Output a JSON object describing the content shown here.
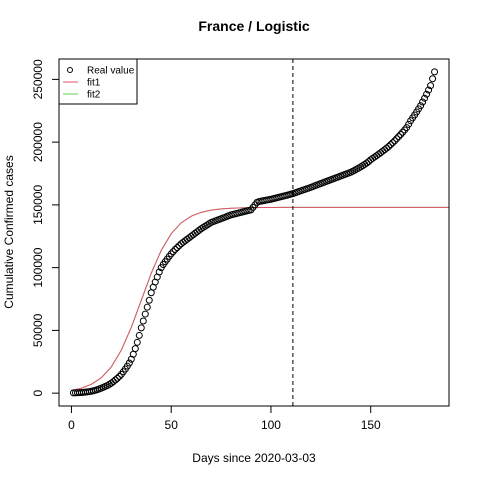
{
  "chart_data": {
    "type": "scatter",
    "title": "France / Logistic",
    "x_label": "Days since 2020-03-03",
    "y_label": "Cumulative Confirmed cases",
    "xlim": [
      -6.24,
      189.24
    ],
    "ylim": [
      -10240,
      266240
    ],
    "xticks": [
      0,
      50,
      100,
      150
    ],
    "yticks": [
      0,
      50000,
      100000,
      150000,
      200000,
      250000
    ],
    "vline": 111,
    "legend": "top-left",
    "series": [
      {
        "name": "Real value",
        "color": "#000000",
        "kind": "points",
        "x": [
          1,
          2,
          3,
          4,
          5,
          6,
          7,
          8,
          9,
          10,
          11,
          12,
          13,
          14,
          15,
          16,
          17,
          18,
          19,
          20,
          21,
          22,
          23,
          24,
          25,
          26,
          27,
          28,
          29,
          30,
          31,
          32,
          33,
          34,
          35,
          36,
          37,
          38,
          39,
          40,
          41,
          42,
          43,
          44,
          45,
          46,
          47,
          48,
          49,
          50,
          51,
          52,
          53,
          54,
          55,
          56,
          57,
          58,
          59,
          60,
          61,
          62,
          63,
          64,
          65,
          66,
          67,
          68,
          69,
          70,
          71,
          72,
          73,
          74,
          75,
          76,
          77,
          78,
          79,
          80,
          81,
          82,
          83,
          84,
          85,
          86,
          87,
          88,
          89,
          90,
          91,
          92,
          93,
          94,
          95,
          96,
          97,
          98,
          99,
          100,
          101,
          102,
          103,
          104,
          105,
          106,
          107,
          108,
          109,
          110,
          111,
          112,
          113,
          114,
          115,
          116,
          117,
          118,
          119,
          120,
          121,
          122,
          123,
          124,
          125,
          126,
          127,
          128,
          129,
          130,
          131,
          132,
          133,
          134,
          135,
          136,
          137,
          138,
          139,
          140,
          141,
          142,
          143,
          144,
          145,
          146,
          147,
          148,
          149,
          150,
          151,
          152,
          153,
          154,
          155,
          156,
          157,
          158,
          159,
          160,
          161,
          162,
          163,
          164,
          165,
          166,
          167,
          168,
          169,
          170,
          171,
          172,
          173,
          174,
          175,
          176,
          177,
          178,
          179,
          180,
          181,
          182
        ],
        "values": [
          200,
          250,
          300,
          400,
          500,
          600,
          800,
          1000,
          1200,
          1500,
          1900,
          2300,
          2800,
          3400,
          4000,
          4700,
          5400,
          6100,
          7000,
          8000,
          9200,
          10500,
          11800,
          13300,
          15000,
          17000,
          19200,
          21500,
          24000,
          27000,
          31000,
          35500,
          40500,
          46000,
          52000,
          57500,
          63000,
          68500,
          74000,
          80000,
          84500,
          88500,
          92500,
          96500,
          100000,
          102500,
          104700,
          106800,
          109000,
          111000,
          112800,
          114500,
          116000,
          117500,
          119000,
          120200,
          121400,
          122600,
          123800,
          125000,
          126200,
          127400,
          128600,
          129800,
          131000,
          132000,
          133000,
          134000,
          135000,
          136000,
          136600,
          137200,
          137800,
          138400,
          139000,
          139600,
          140200,
          140800,
          141400,
          142000,
          142400,
          142800,
          143200,
          143600,
          144000,
          144400,
          144800,
          145200,
          145600,
          146000,
          148000,
          150000,
          152000,
          152600,
          153000,
          153300,
          153600,
          153900,
          154200,
          154500,
          154900,
          155300,
          155700,
          156100,
          156500,
          156900,
          157300,
          157700,
          158100,
          158600,
          159000,
          159600,
          160100,
          160700,
          161200,
          161800,
          162300,
          162900,
          163400,
          164000,
          164600,
          165200,
          165800,
          166400,
          167000,
          167600,
          168200,
          168800,
          169400,
          170000,
          170600,
          171200,
          171800,
          172400,
          173000,
          173600,
          174200,
          174800,
          175400,
          176000,
          176800,
          177600,
          178500,
          179400,
          180300,
          181300,
          182300,
          183400,
          184600,
          186000,
          187100,
          188200,
          189300,
          190400,
          191600,
          192800,
          194000,
          195200,
          196500,
          198000,
          199500,
          201000,
          202700,
          204400,
          206100,
          207900,
          209700,
          211600,
          214200,
          217000,
          219300,
          221600,
          224000,
          226500,
          229000,
          232000,
          235000,
          238200,
          241500,
          245000,
          250500,
          256000
        ]
      },
      {
        "name": "fit1",
        "color": "#DF536B",
        "kind": "line",
        "x": [
          0,
          5,
          10,
          15,
          20,
          25,
          30,
          35,
          40,
          45,
          50,
          55,
          60,
          65,
          70,
          75,
          80,
          85,
          90,
          95,
          100,
          105,
          110,
          115,
          120,
          125,
          130,
          135,
          140,
          145,
          150,
          155,
          160,
          165,
          170,
          175,
          180,
          185,
          189
        ],
        "values": [
          2186,
          3930,
          7024,
          12312,
          20993,
          34259,
          52445,
          74000,
          95555,
          113758,
          127039,
          135694,
          140978,
          144067,
          145813,
          146792,
          147334,
          147634,
          147799,
          147890,
          147940,
          147970,
          147985,
          148000,
          148000,
          148000,
          148000,
          148000,
          148000,
          148000,
          148000,
          148000,
          148000,
          148000,
          148000,
          148000,
          148000,
          148000,
          148000
        ]
      },
      {
        "name": "fit2",
        "color": "#61D04F",
        "kind": "line",
        "x": [
          0,
          5,
          10,
          15,
          20,
          25,
          30,
          35,
          40,
          45,
          50,
          55,
          60,
          65,
          70,
          75,
          80,
          85,
          90,
          95,
          100,
          105,
          110,
          115,
          120,
          125,
          130,
          135,
          140,
          145,
          150,
          155,
          160,
          165,
          170,
          175,
          180,
          185,
          189
        ],
        "values": [
          2186,
          3930,
          7024,
          12312,
          20993,
          34259,
          52445,
          74000,
          95555,
          113758,
          127039,
          135694,
          140978,
          144067,
          145813,
          146792,
          147334,
          147634,
          147799,
          147890,
          147940,
          147970,
          147985,
          148000,
          148000,
          148000,
          148000,
          148000,
          148000,
          148000,
          148000,
          148000,
          148000,
          148000,
          148000,
          148000,
          148000,
          148000,
          148000
        ]
      }
    ]
  }
}
